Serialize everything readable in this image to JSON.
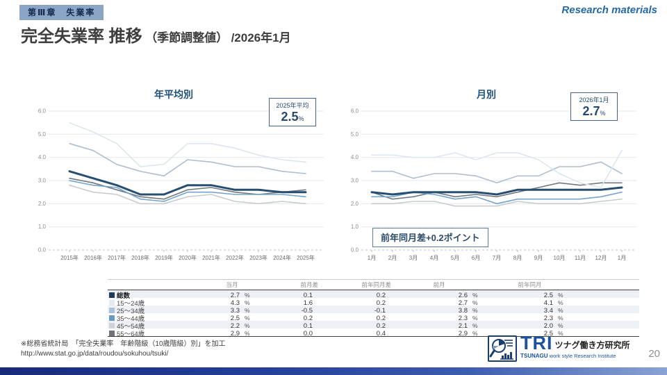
{
  "page": {
    "chapter_badge": "第Ⅲ章　失業率",
    "corner_note": "Research materials",
    "title_main": "完全失業率 推移",
    "title_sub": "（季節調整値）",
    "title_date": "/2026年1月",
    "page_number": "20"
  },
  "charts": {
    "left": {
      "title": "年平均別",
      "badge_label": "2025年平均",
      "badge_value": "2.5",
      "badge_unit": "%"
    },
    "right": {
      "title": "月別",
      "badge_label": "2026年1月",
      "badge_value": "2.7",
      "badge_unit": "%",
      "annotation": "前年同月差+0.2ポイント"
    }
  },
  "chart_data": [
    {
      "type": "line",
      "title": "年平均別",
      "xlabel": "",
      "ylabel": "",
      "ylim": [
        0,
        6
      ],
      "yticks": [
        0,
        1,
        2,
        3,
        4,
        5,
        6
      ],
      "grid": true,
      "legend_position": "table-below",
      "categories": [
        "2015年",
        "2016年",
        "2017年",
        "2018年",
        "2019年",
        "2020年",
        "2021年",
        "2022年",
        "2023年",
        "2024年",
        "2025年"
      ],
      "series": [
        {
          "name": "総数",
          "color": "#274e71",
          "lw": 3,
          "values": [
            3.4,
            3.1,
            2.8,
            2.4,
            2.4,
            2.8,
            2.8,
            2.6,
            2.6,
            2.5,
            2.5
          ]
        },
        {
          "name": "15〜24歳",
          "color": "#dce6ed",
          "lw": 1.6,
          "values": [
            5.5,
            5.1,
            4.6,
            3.6,
            3.7,
            4.6,
            4.6,
            4.4,
            4.1,
            3.9,
            3.8
          ]
        },
        {
          "name": "25〜34歳",
          "color": "#adbecd",
          "lw": 1.6,
          "values": [
            4.6,
            4.3,
            3.7,
            3.4,
            3.2,
            3.9,
            3.8,
            3.6,
            3.6,
            3.4,
            3.3
          ]
        },
        {
          "name": "35〜44歳",
          "color": "#74a3cb",
          "lw": 1.6,
          "values": [
            3.0,
            2.8,
            2.7,
            2.2,
            2.1,
            2.5,
            2.5,
            2.4,
            2.4,
            2.4,
            2.3
          ]
        },
        {
          "name": "45〜54歳",
          "color": "#c7cbcf",
          "lw": 1.6,
          "values": [
            2.8,
            2.5,
            2.4,
            2.0,
            2.0,
            2.3,
            2.4,
            2.1,
            2.0,
            2.1,
            2.0
          ]
        },
        {
          "name": "55〜64歳",
          "color": "#73797e",
          "lw": 1.6,
          "values": [
            3.1,
            2.9,
            2.6,
            2.3,
            2.2,
            2.6,
            2.7,
            2.5,
            2.4,
            2.5,
            2.6
          ]
        }
      ]
    },
    {
      "type": "line",
      "title": "月別",
      "xlabel": "",
      "ylabel": "",
      "ylim": [
        0,
        6
      ],
      "yticks": [
        0,
        1,
        2,
        3,
        4,
        5,
        6
      ],
      "grid": true,
      "legend_position": "table-below",
      "categories": [
        "1月",
        "2月",
        "3月",
        "4月",
        "5月",
        "6月",
        "7月",
        "8月",
        "9月",
        "10月",
        "11月",
        "12月",
        "1月"
      ],
      "series": [
        {
          "name": "総数",
          "color": "#274e71",
          "lw": 3,
          "values": [
            2.5,
            2.4,
            2.5,
            2.5,
            2.5,
            2.5,
            2.4,
            2.6,
            2.6,
            2.6,
            2.6,
            2.6,
            2.7
          ]
        },
        {
          "name": "15〜24歳",
          "color": "#dce6ed",
          "lw": 1.6,
          "values": [
            4.1,
            4.1,
            4.0,
            4.0,
            4.2,
            3.9,
            4.2,
            4.2,
            3.9,
            3.3,
            2.9,
            2.7,
            4.3
          ]
        },
        {
          "name": "25〜34歳",
          "color": "#adbecd",
          "lw": 1.6,
          "values": [
            3.4,
            3.4,
            3.1,
            3.3,
            3.3,
            3.2,
            2.9,
            3.2,
            3.2,
            3.6,
            3.6,
            3.8,
            3.3
          ]
        },
        {
          "name": "35〜44歳",
          "color": "#74a3cb",
          "lw": 1.6,
          "values": [
            2.3,
            2.3,
            2.5,
            2.4,
            2.2,
            2.3,
            2.0,
            2.2,
            2.2,
            2.2,
            2.2,
            2.3,
            2.5
          ]
        },
        {
          "name": "45〜54歳",
          "color": "#c7cbcf",
          "lw": 1.6,
          "values": [
            2.0,
            2.0,
            2.1,
            2.1,
            1.9,
            1.9,
            1.9,
            2.1,
            2.0,
            2.0,
            2.0,
            2.1,
            2.2
          ]
        },
        {
          "name": "55〜64歳",
          "color": "#73797e",
          "lw": 1.6,
          "values": [
            2.5,
            2.2,
            2.3,
            2.5,
            2.3,
            2.4,
            2.3,
            2.5,
            2.7,
            2.9,
            2.8,
            2.9,
            2.9
          ]
        }
      ]
    }
  ],
  "table": {
    "headers": [
      "当月",
      "前月差",
      "前年同月差",
      "前月",
      "前年同月"
    ],
    "unit": "%",
    "rows": [
      {
        "label": "総数",
        "color": "#1f3a5c",
        "current": "2.7",
        "mom_diff": "0.1",
        "yoy_diff": "0.2",
        "prev_month": "2.6",
        "prev_year": "2.5"
      },
      {
        "label": "15〜24歳",
        "color": "#e4ecf2",
        "current": "4.3",
        "mom_diff": "1.6",
        "yoy_diff": "0.2",
        "prev_month": "2.7",
        "prev_year": "4.1"
      },
      {
        "label": "25〜34歳",
        "color": "#a9c2dc",
        "current": "3.3",
        "mom_diff": "-0.5",
        "yoy_diff": "-0.1",
        "prev_month": "3.8",
        "prev_year": "3.4"
      },
      {
        "label": "35〜44歳",
        "color": "#6699c4",
        "current": "2.5",
        "mom_diff": "0.2",
        "yoy_diff": "0.2",
        "prev_month": "2.3",
        "prev_year": "2.3"
      },
      {
        "label": "45〜54歳",
        "color": "#cfd2d6",
        "current": "2.2",
        "mom_diff": "0.1",
        "yoy_diff": "0.2",
        "prev_month": "2.1",
        "prev_year": "2.0"
      },
      {
        "label": "55〜64歳",
        "color": "#6e7479",
        "current": "2.9",
        "mom_diff": "0.0",
        "yoy_diff": "0.4",
        "prev_month": "2.9",
        "prev_year": "2.5"
      }
    ]
  },
  "footer": {
    "source_line1": "※総務省統計局　「完全失業率　年齢階級（10歳階級）別」を加工",
    "source_line2": "http://www.stat.go.jp/data/roudou/sokuhou/tsuki/",
    "logo_tri": "TRI",
    "logo_jp": "ツナグ働き方研究所",
    "logo_en_bold": "TSUNAGU",
    "logo_en_rest": " work style Research Institute"
  }
}
